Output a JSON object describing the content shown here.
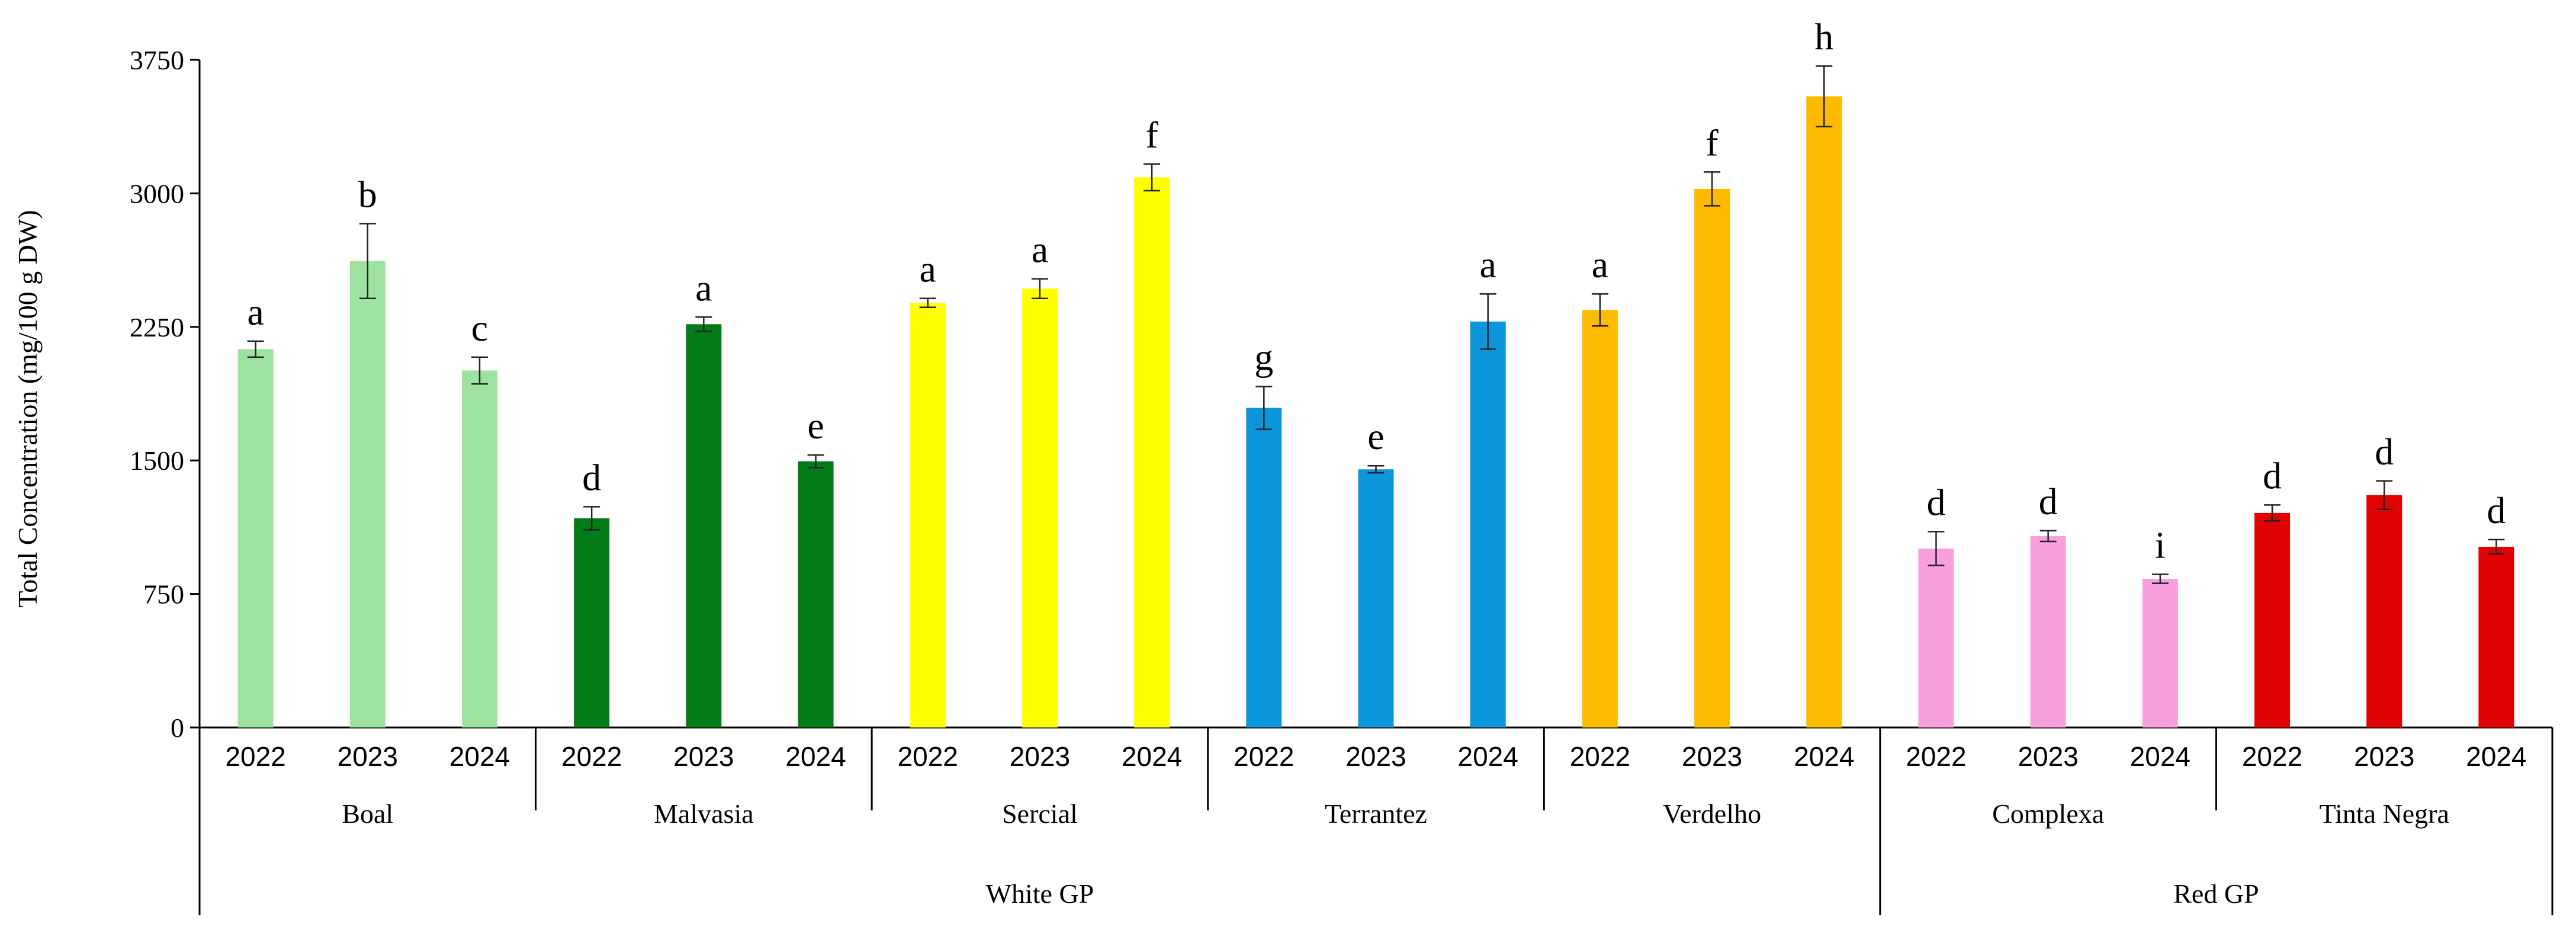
{
  "chart_data": {
    "type": "bar",
    "title": "",
    "xlabel": "",
    "ylabel": "Total Concentration (mg/100 g DW)",
    "ylim": [
      0,
      3750
    ],
    "yticks": [
      "0",
      "750",
      "1500",
      "2250",
      "3000",
      "3750"
    ],
    "ytick_values": [
      0,
      750,
      1500,
      2250,
      3000,
      3750
    ],
    "categories": [
      "2022",
      "2023",
      "2024",
      "2022",
      "2023",
      "2024",
      "2022",
      "2023",
      "2024",
      "2022",
      "2023",
      "2024",
      "2022",
      "2023",
      "2024",
      "2022",
      "2023",
      "2024",
      "2022",
      "2023",
      "2024"
    ],
    "cultivars": [
      "Boal",
      "Malvasia",
      "Sercial",
      "Terrantez",
      "Verdelho",
      "Complexa",
      "Tinta Negra"
    ],
    "groups": [
      {
        "label": "White GP",
        "cultivars": 5
      },
      {
        "label": "Red GP",
        "cultivars": 2
      }
    ],
    "values": [
      2125,
      2620,
      2005,
      1175,
      2265,
      1495,
      2385,
      2465,
      3090,
      1795,
      1450,
      2280,
      2345,
      3025,
      3545,
      1005,
      1075,
      835,
      1205,
      1305,
      1015
    ],
    "errors": [
      45,
      210,
      75,
      65,
      40,
      35,
      25,
      55,
      75,
      120,
      20,
      155,
      90,
      95,
      170,
      95,
      30,
      25,
      45,
      80,
      40
    ],
    "letters": [
      "a",
      "b",
      "c",
      "d",
      "a",
      "e",
      "a",
      "a",
      "f",
      "g",
      "e",
      "a",
      "a",
      "f",
      "h",
      "d",
      "d",
      "i",
      "d",
      "d",
      "d"
    ],
    "colors": [
      "#9de39f",
      "#9de39f",
      "#9de39f",
      "#037b16",
      "#037b16",
      "#037b16",
      "#ffff00",
      "#ffff00",
      "#ffff00",
      "#0b96db",
      "#0b96db",
      "#0b96db",
      "#fdbb00",
      "#fdbb00",
      "#fdbb00",
      "#f7a0dc",
      "#f7a0dc",
      "#f7a0dc",
      "#e00101",
      "#e00101",
      "#e00101"
    ]
  }
}
